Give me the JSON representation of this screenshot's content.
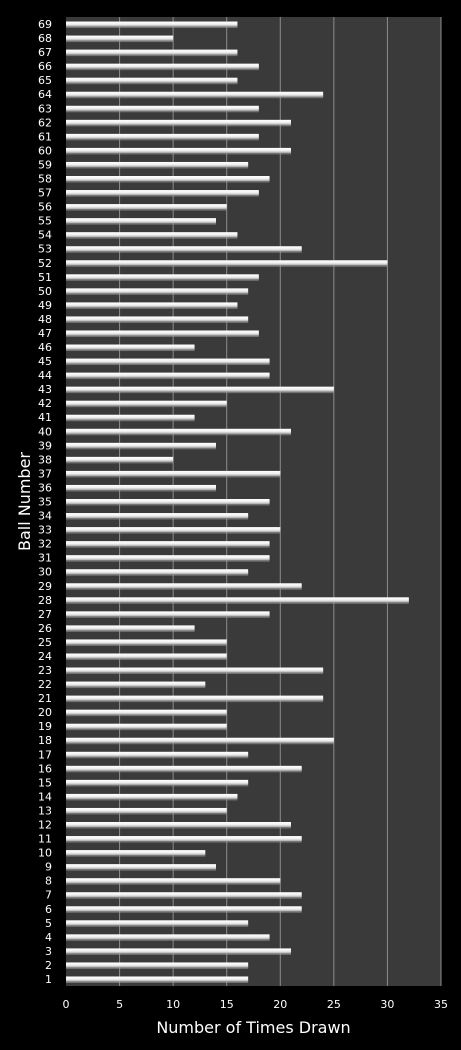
{
  "chart_data": {
    "type": "bar",
    "orientation": "horizontal",
    "xlabel": "Number of Times Drawn",
    "ylabel": "Ball Number",
    "xlim": [
      0,
      35
    ],
    "xticks": [
      0,
      5,
      10,
      15,
      20,
      25,
      30,
      35
    ],
    "grid": "vertical",
    "legend": "none",
    "categories": [
      "1",
      "2",
      "3",
      "4",
      "5",
      "6",
      "7",
      "8",
      "9",
      "10",
      "11",
      "12",
      "13",
      "14",
      "15",
      "16",
      "17",
      "18",
      "19",
      "20",
      "21",
      "22",
      "23",
      "24",
      "25",
      "26",
      "27",
      "28",
      "29",
      "30",
      "31",
      "32",
      "33",
      "34",
      "35",
      "36",
      "37",
      "38",
      "39",
      "40",
      "41",
      "42",
      "43",
      "44",
      "45",
      "46",
      "47",
      "48",
      "49",
      "50",
      "51",
      "52",
      "53",
      "54",
      "55",
      "56",
      "57",
      "58",
      "59",
      "60",
      "61",
      "62",
      "63",
      "64",
      "65",
      "66",
      "67",
      "68",
      "69"
    ],
    "values": [
      17,
      17,
      21,
      19,
      17,
      22,
      22,
      20,
      14,
      13,
      22,
      21,
      15,
      16,
      17,
      22,
      17,
      25,
      15,
      15,
      24,
      13,
      24,
      15,
      15,
      12,
      19,
      32,
      22,
      17,
      19,
      19,
      20,
      17,
      19,
      14,
      20,
      10,
      14,
      21,
      12,
      15,
      25,
      19,
      19,
      12,
      18,
      17,
      16,
      17,
      18,
      30,
      22,
      16,
      14,
      15,
      18,
      19,
      17,
      21,
      18,
      21,
      18,
      24,
      16,
      18,
      16,
      10,
      16
    ],
    "colors": {
      "background": "#000000",
      "plot_area": "#3a3a3a",
      "bar_fill": "#f2f2f2",
      "bar_shadow": "#9a9a9a",
      "gridline": "#8c8c8c",
      "text": "#ffffff"
    }
  }
}
